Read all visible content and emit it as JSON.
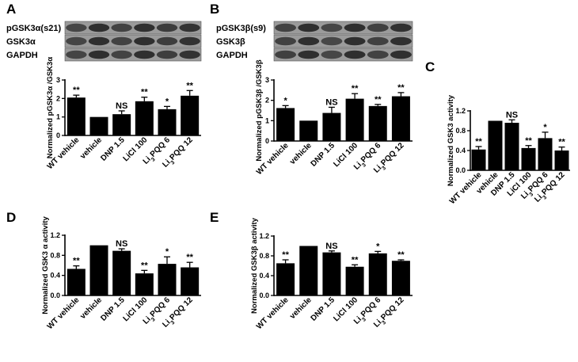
{
  "panels": {
    "A": {
      "label": "A",
      "blot_labels": [
        "pGSK3α(s21)",
        "GSK3α",
        "GAPDH"
      ]
    },
    "B": {
      "label": "B",
      "blot_labels": [
        "pGSK3β(s9)",
        "GSK3β",
        "GAPDH"
      ]
    },
    "C": {
      "label": "C"
    },
    "D": {
      "label": "D"
    },
    "E": {
      "label": "E"
    }
  },
  "chart_data": [
    {
      "panel": "A",
      "type": "bar",
      "categories": [
        "WT vehicle",
        "vehicle",
        "DNP 1.5",
        "LiCl 100",
        "Li3PQQ 6",
        "Li3PQQ 12"
      ],
      "values": [
        2.05,
        1.0,
        1.15,
        1.85,
        1.42,
        2.15
      ],
      "errors": [
        0.13,
        0.0,
        0.18,
        0.22,
        0.15,
        0.28
      ],
      "significance": [
        "**",
        "",
        "NS",
        "**",
        "*",
        "**"
      ],
      "ylabel": "Normalized pGSK3α /GSK3α",
      "ylim": [
        0,
        3
      ],
      "yticks": [
        0,
        1,
        2,
        3
      ]
    },
    {
      "panel": "B",
      "type": "bar",
      "categories": [
        "WT vehicle",
        "vehicle",
        "DNP 1.5",
        "LiCl 100",
        "Li3PQQ 6",
        "Li3PQQ 12"
      ],
      "values": [
        1.62,
        1.0,
        1.38,
        2.08,
        1.72,
        2.2
      ],
      "errors": [
        0.12,
        0.0,
        0.28,
        0.25,
        0.08,
        0.18
      ],
      "significance": [
        "*",
        "",
        "NS",
        "**",
        "**",
        "**"
      ],
      "ylabel": "Normalized pGSK3β /GSK3β",
      "ylim": [
        0,
        3
      ],
      "yticks": [
        0,
        1,
        2,
        3
      ]
    },
    {
      "panel": "C",
      "type": "bar",
      "categories": [
        "WT vehicle",
        "vehicle",
        "DNP 1.5",
        "LiCl 100",
        "Li3PQQ 6",
        "Li3PQQ 12"
      ],
      "values": [
        0.42,
        1.0,
        0.96,
        0.45,
        0.65,
        0.4
      ],
      "errors": [
        0.06,
        0.0,
        0.06,
        0.05,
        0.12,
        0.07
      ],
      "significance": [
        "**",
        "",
        "NS",
        "**",
        "*",
        "**"
      ],
      "ylabel": "Normalized  GSK3 activity",
      "ylim": [
        0,
        1.2
      ],
      "yticks": [
        0.0,
        0.4,
        0.8,
        1.2
      ]
    },
    {
      "panel": "D",
      "type": "bar",
      "categories": [
        "WT vehicle",
        "vehicle",
        "DNP 1.5",
        "LiCl 100",
        "Li3PQQ 6",
        "Li3PQQ 12"
      ],
      "values": [
        0.53,
        1.0,
        0.89,
        0.44,
        0.63,
        0.56
      ],
      "errors": [
        0.06,
        0.0,
        0.04,
        0.06,
        0.14,
        0.1
      ],
      "significance": [
        "**",
        "",
        "NS",
        "**",
        "*",
        "**"
      ],
      "ylabel": "Normalized  GSK3 α activity",
      "ylim": [
        0,
        1.2
      ],
      "yticks": [
        0.0,
        0.4,
        0.8,
        1.2
      ]
    },
    {
      "panel": "E",
      "type": "bar",
      "categories": [
        "WT vehicle",
        "vehicle",
        "DNP 1.5",
        "LiCl 100",
        "Li3PQQ 6",
        "Li3PQQ 12"
      ],
      "values": [
        0.65,
        1.0,
        0.87,
        0.58,
        0.85,
        0.7
      ],
      "errors": [
        0.07,
        0.0,
        0.03,
        0.04,
        0.04,
        0.02
      ],
      "significance": [
        "**",
        "",
        "NS",
        "**",
        "*",
        "**"
      ],
      "ylabel": "Normalized  GSK3β activity",
      "ylim": [
        0,
        1.2
      ],
      "yticks": [
        0.0,
        0.4,
        0.8,
        1.2
      ]
    }
  ]
}
